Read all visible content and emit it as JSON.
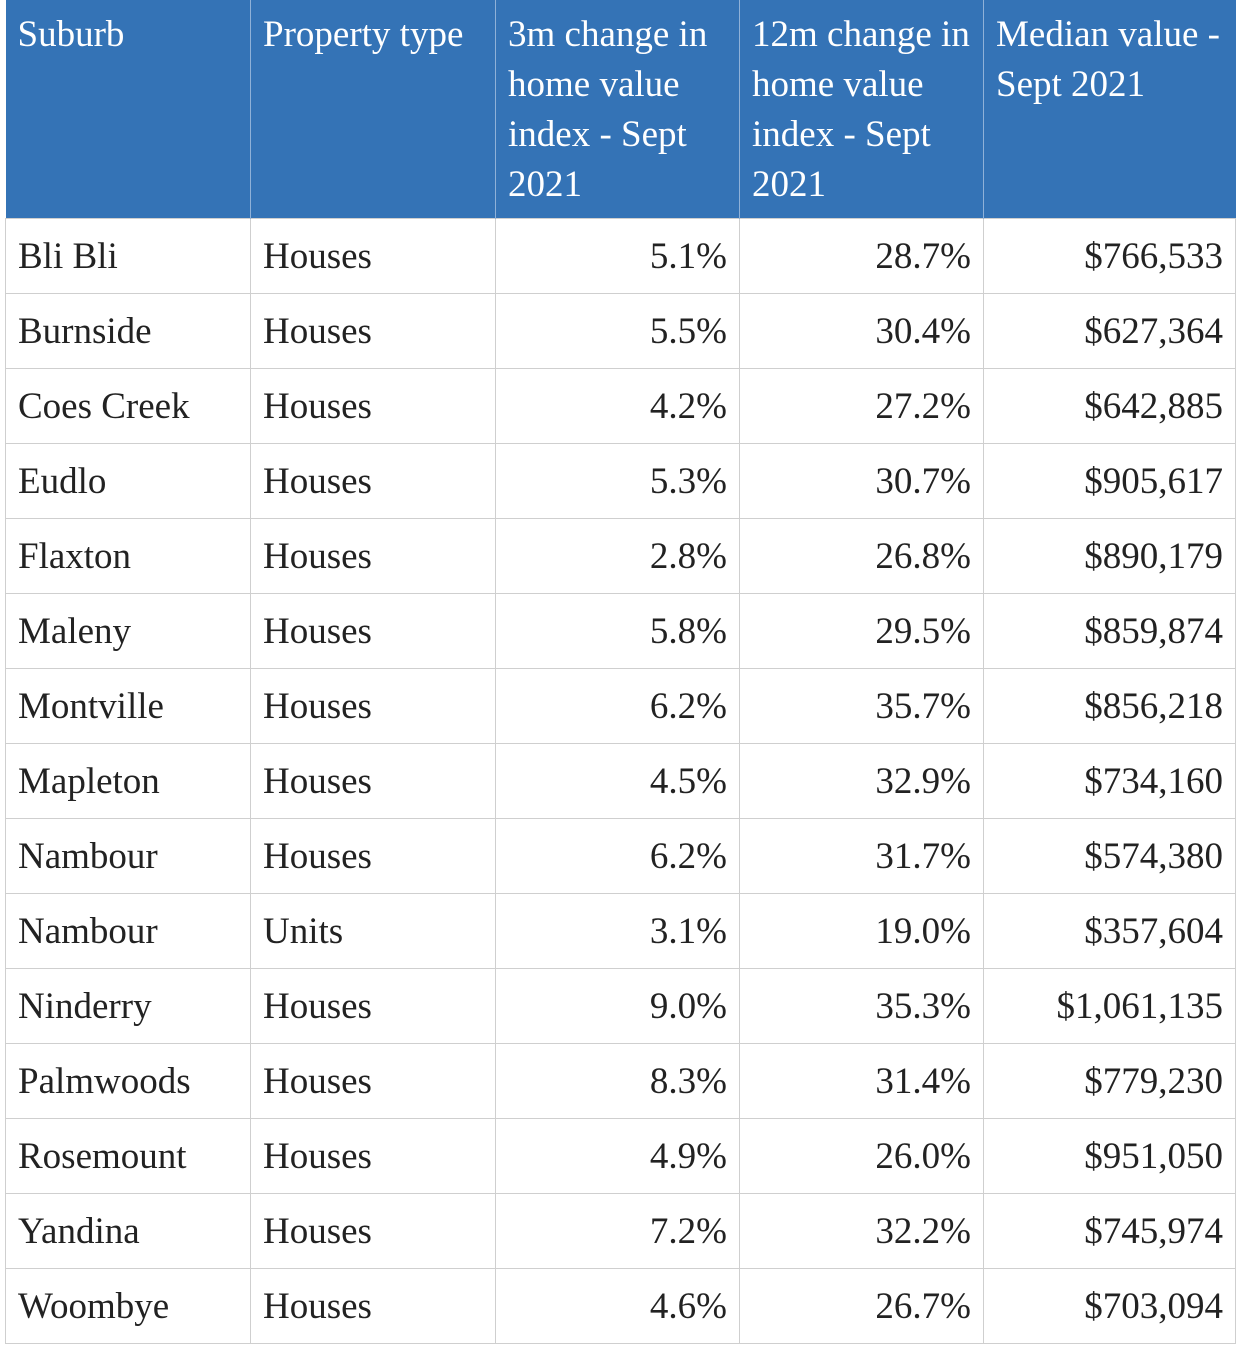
{
  "table": {
    "header": [
      "Suburb",
      "Property type",
      "3m change in home value index - Sept 2021",
      "12m change in home value index - Sept 2021",
      "Median value - Sept 2021"
    ],
    "rows": [
      [
        "Bli Bli",
        "Houses",
        "5.1%",
        "28.7%",
        "$766,533"
      ],
      [
        "Burnside",
        "Houses",
        "5.5%",
        "30.4%",
        "$627,364"
      ],
      [
        "Coes Creek",
        "Houses",
        "4.2%",
        "27.2%",
        "$642,885"
      ],
      [
        "Eudlo",
        "Houses",
        "5.3%",
        "30.7%",
        "$905,617"
      ],
      [
        "Flaxton",
        "Houses",
        "2.8%",
        "26.8%",
        "$890,179"
      ],
      [
        "Maleny",
        "Houses",
        "5.8%",
        "29.5%",
        "$859,874"
      ],
      [
        "Montville",
        "Houses",
        "6.2%",
        "35.7%",
        "$856,218"
      ],
      [
        "Mapleton",
        "Houses",
        "4.5%",
        "32.9%",
        "$734,160"
      ],
      [
        "Nambour",
        "Houses",
        "6.2%",
        "31.7%",
        "$574,380"
      ],
      [
        "Nambour",
        "Units",
        "3.1%",
        "19.0%",
        "$357,604"
      ],
      [
        "Ninderry",
        "Houses",
        "9.0%",
        "35.3%",
        "$1,061,135"
      ],
      [
        "Palmwoods",
        "Houses",
        "8.3%",
        "31.4%",
        "$779,230"
      ],
      [
        "Rosemount",
        "Houses",
        "4.9%",
        "26.0%",
        "$951,050"
      ],
      [
        "Yandina",
        "Houses",
        "7.2%",
        "32.2%",
        "$745,974"
      ],
      [
        "Woombye",
        "Houses",
        "4.6%",
        "26.7%",
        "$703,094"
      ]
    ]
  }
}
